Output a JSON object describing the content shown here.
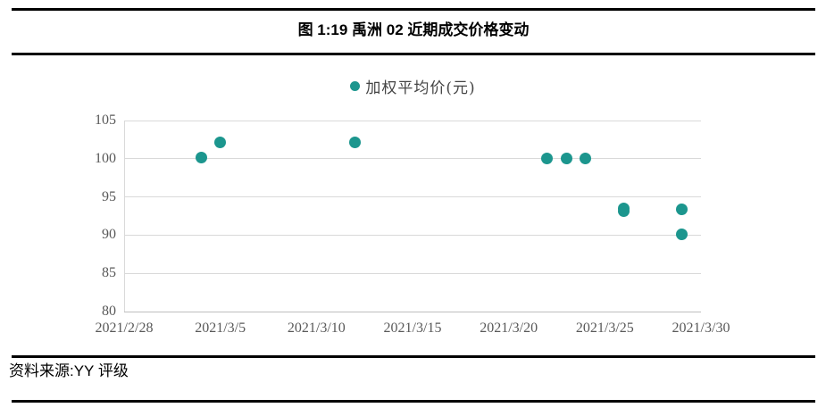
{
  "figure": {
    "title": "图 1:19 禹洲 02 近期成交价格变动",
    "source_label": "资料来源:YY 评级"
  },
  "chart_data": {
    "type": "scatter",
    "title": "图 1:19 禹洲 02 近期成交价格变动",
    "legend_position": "top-center",
    "grid": "horizontal",
    "x_axis": {
      "ticks": [
        "2021/2/28",
        "2021/3/5",
        "2021/3/10",
        "2021/3/15",
        "2021/3/20",
        "2021/3/25",
        "2021/3/30"
      ],
      "range_days": [
        0,
        30
      ]
    },
    "y_axis": {
      "ticks": [
        105,
        100,
        95,
        90,
        85,
        80
      ],
      "range": [
        80,
        105
      ]
    },
    "series": [
      {
        "name": "加权平均价(元)",
        "marker": "circle",
        "color": "#1C968E",
        "points": [
          {
            "date": "2021/3/4",
            "price": 100.1
          },
          {
            "date": "2021/3/5",
            "price": 102.1
          },
          {
            "date": "2021/3/12",
            "price": 102.1
          },
          {
            "date": "2021/3/22",
            "price": 100.0
          },
          {
            "date": "2021/3/23",
            "price": 100.0
          },
          {
            "date": "2021/3/24",
            "price": 100.0
          },
          {
            "date": "2021/3/26",
            "price": 93.5
          },
          {
            "date": "2021/3/26",
            "price": 93.2
          },
          {
            "date": "2021/3/29",
            "price": 93.4
          },
          {
            "date": "2021/3/29",
            "price": 90.1
          }
        ]
      }
    ]
  },
  "colors": {
    "accent_teal": "#1C968E",
    "gridline": "#D9D9D9",
    "axis_line": "#BFBFBF",
    "tick_label": "#595959",
    "rule": "#000000"
  }
}
